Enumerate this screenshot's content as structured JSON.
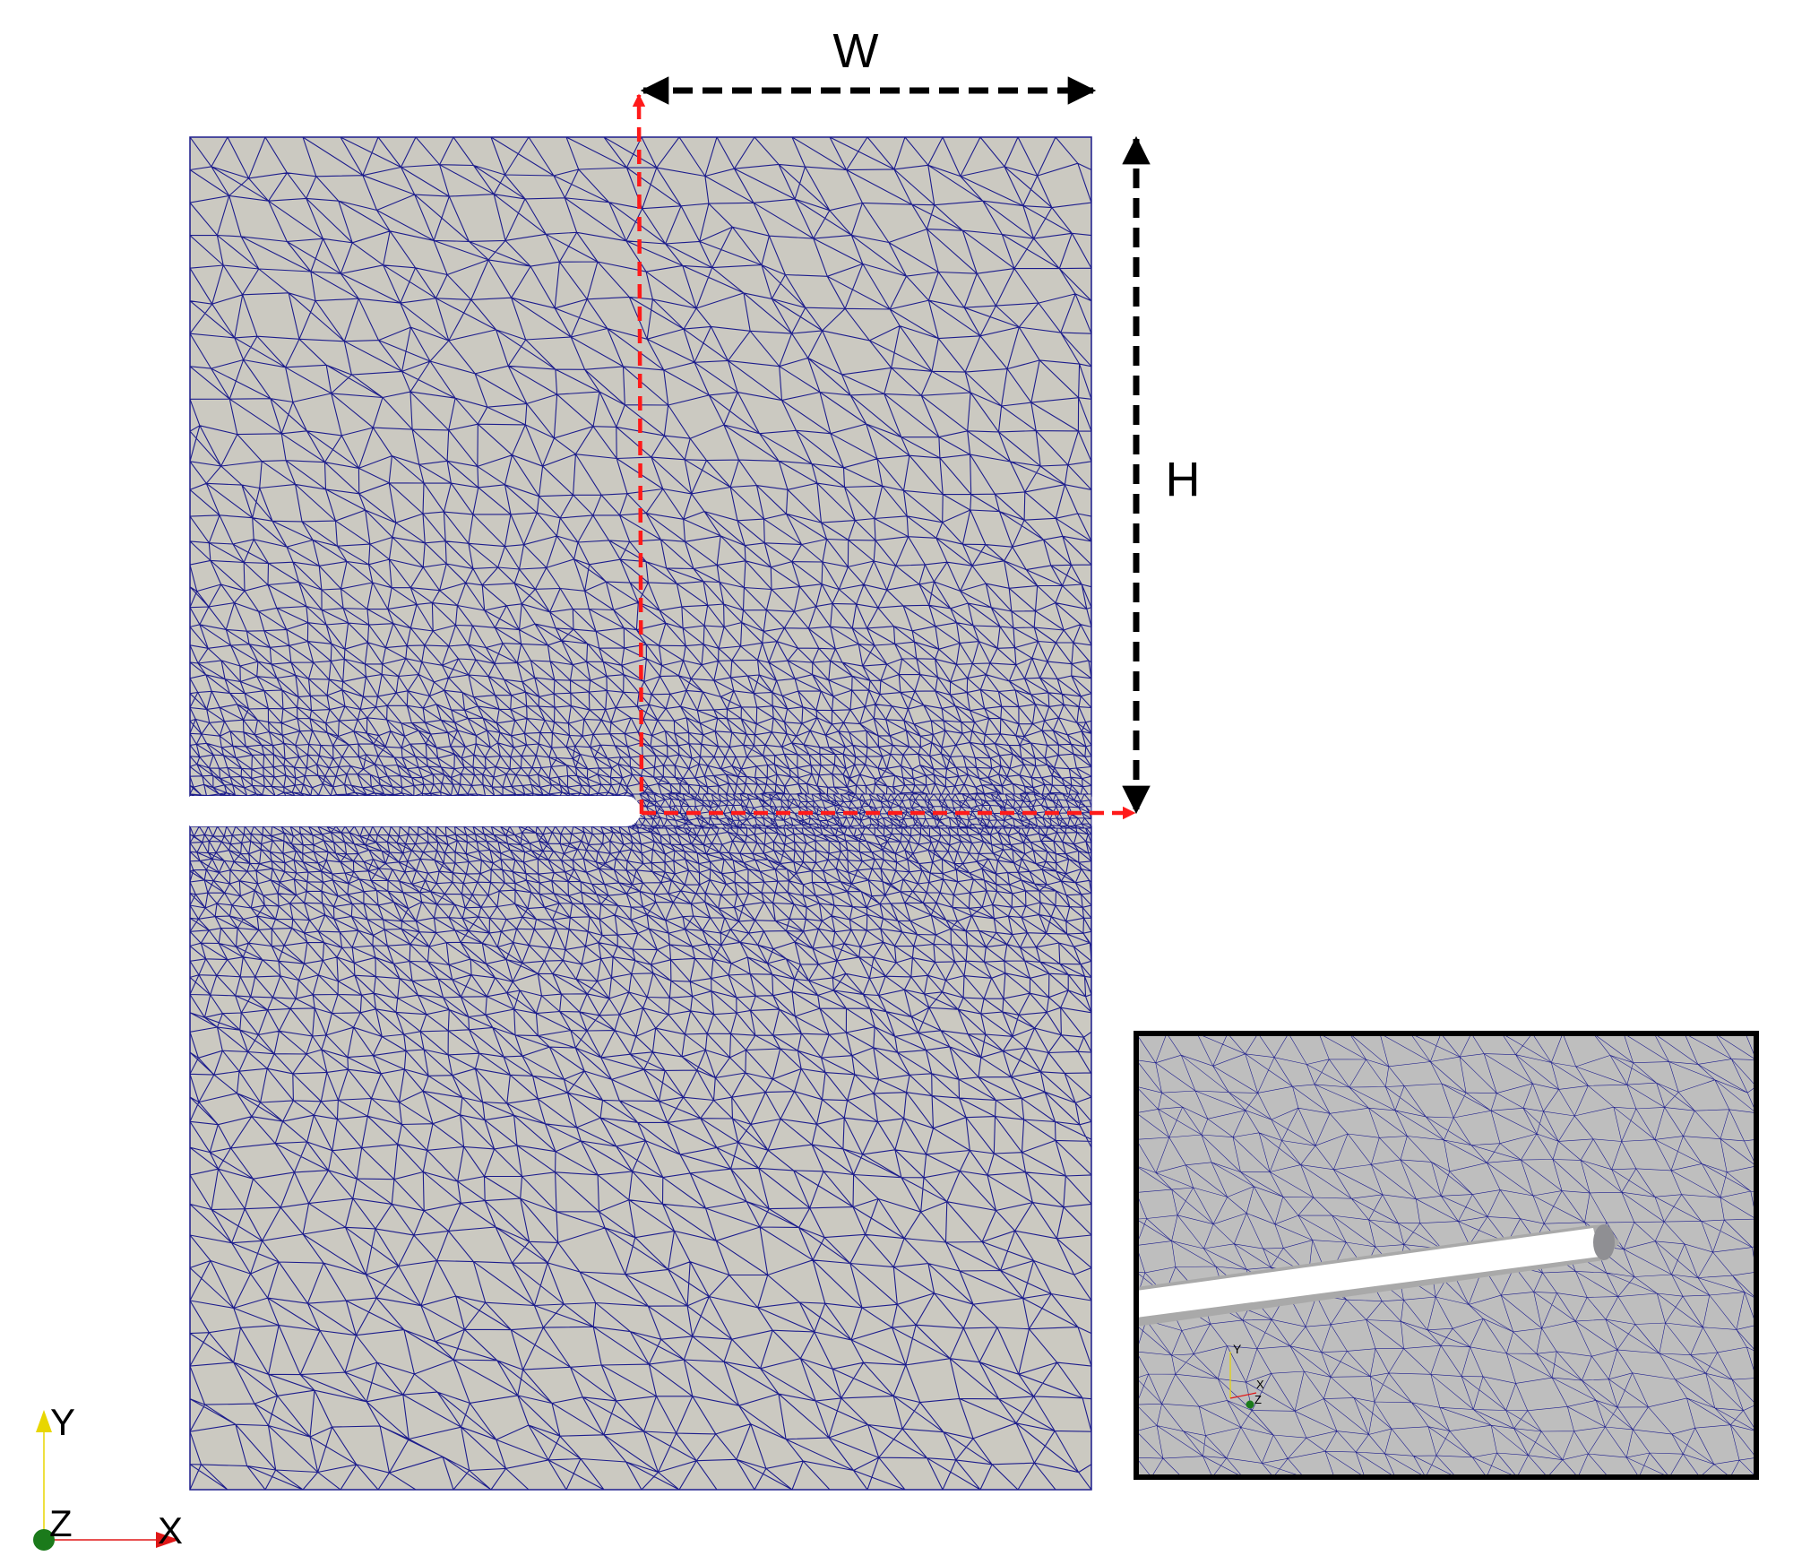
{
  "labels": {
    "width": "W",
    "height": "H"
  },
  "axes": {
    "main": {
      "x": "X",
      "y": "Y",
      "z": "Z"
    },
    "inset": {
      "x": "X",
      "y": "Y",
      "z": "Z"
    }
  },
  "colors": {
    "background": "#ffffff",
    "mesh_fill": "#cbc9c1",
    "mesh_line": "#1d1d8c",
    "dimension_arrow": "#000000",
    "centerline": "#ff1a1a",
    "axis_x": "#e01818",
    "axis_y": "#e8d600",
    "axis_z": "#1b7a1b",
    "inset_fill": "#bebebe",
    "inset_border": "#000000"
  }
}
